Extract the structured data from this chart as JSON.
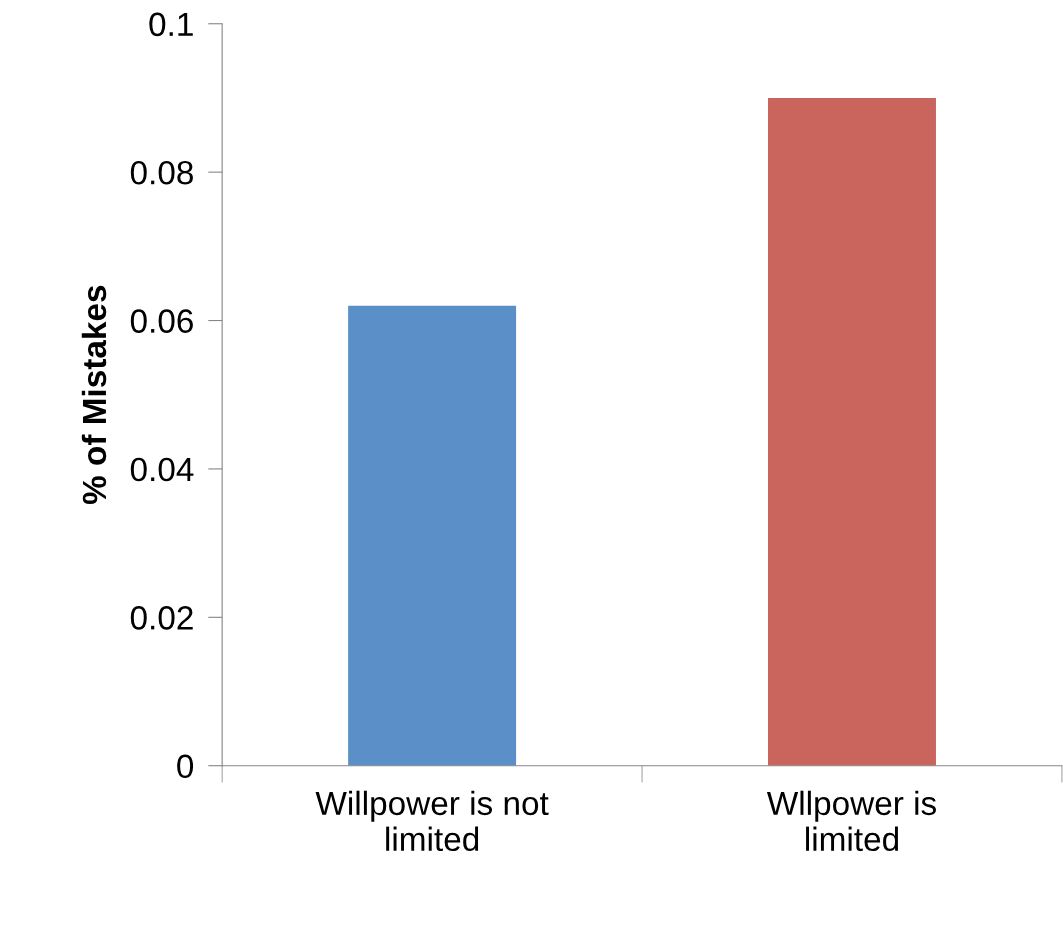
{
  "chart_data": {
    "type": "bar",
    "ylabel": "% of Mistakes",
    "categories": [
      "Willpower is not\nlimited",
      "Wllpower is\nlimited"
    ],
    "values": [
      0.062,
      0.09
    ],
    "colors": [
      "#5b8fc7",
      "#c9655c"
    ],
    "ylim": [
      0,
      0.1
    ],
    "yticks": [
      0,
      0.02,
      0.04,
      0.06,
      0.08,
      0.1
    ],
    "grid": false,
    "legend": false
  }
}
